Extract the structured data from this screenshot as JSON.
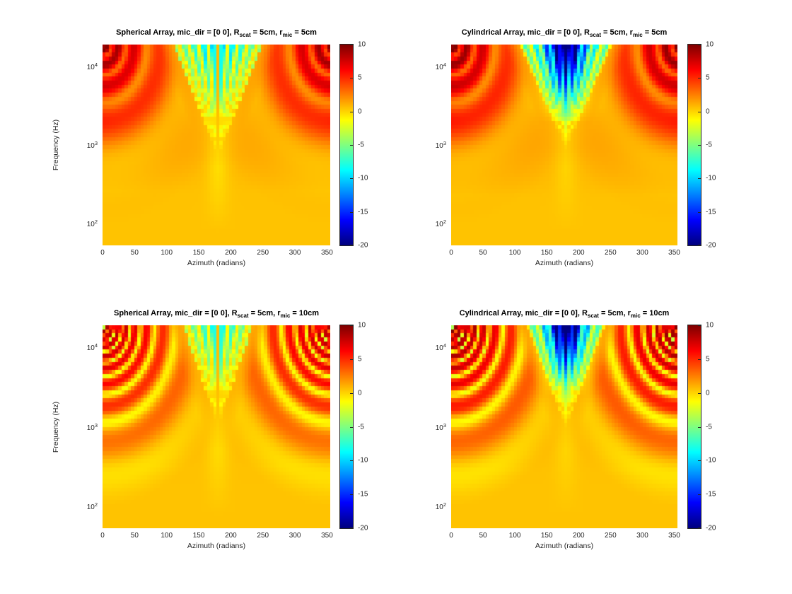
{
  "figure": {
    "background": "#ffffff"
  },
  "chart_data": {
    "type": "heatmap",
    "layout": "2x2",
    "colormap": "jet",
    "value_range": [
      -20,
      10
    ],
    "colorbar": {
      "ticks": [
        10,
        5,
        0,
        -5,
        -10,
        -15,
        -20
      ]
    },
    "x_axis": {
      "label": "Azimuth (radians)",
      "ticks": [
        0,
        50,
        100,
        150,
        200,
        250,
        300,
        350
      ],
      "range": [
        0,
        355
      ]
    },
    "y_axis": {
      "label": "Frequency (Hz)",
      "scale": "log",
      "tick_exponents": [
        4,
        3,
        2
      ],
      "log_range": [
        1.72,
        4.28
      ]
    },
    "grid": {
      "n_azimuth": 72,
      "n_freq": 50
    },
    "panels": [
      {
        "id": "spherical-r5",
        "title_parts": [
          "Spherical Array, mic_dir = [0 0], R",
          "scat",
          " = 5cm, r",
          "mic",
          " = 5cm"
        ],
        "pattern": {
          "base": 0.5,
          "baseRise": 0.9,
          "side": 6.5,
          "sideFade": 0.74,
          "sTop": 0.38,
          "tApex": 0.56,
          "rays": 9,
          "depth": 15,
          "seamMax": false,
          "ccDepth": 0,
          "ccW": 0.15,
          "ccT": 0.38,
          "dip": 0.9,
          "fringeCount": 4.2,
          "fringeAmp": 0.34
        }
      },
      {
        "id": "cylindrical-r5",
        "title_parts": [
          "Cylindrical Array, mic_dir = [0 0], R",
          "scat",
          " = 5cm, r",
          "mic",
          " = 5cm"
        ],
        "pattern": {
          "base": 0.5,
          "baseRise": 0.9,
          "side": 6.8,
          "sideFade": 0.76,
          "sTop": 0.4,
          "tApex": 0.52,
          "rays": 9,
          "depth": 17,
          "seamMax": true,
          "ccDepth": 14,
          "ccW": 0.16,
          "ccT": 0.38,
          "dip": 0.6,
          "fringeCount": 4.2,
          "fringeAmp": 0.36
        }
      },
      {
        "id": "spherical-r10",
        "title_parts": [
          "Spherical Array, mic_dir = [0 0], R",
          "scat",
          " = 5cm, r",
          "mic",
          " = 10cm"
        ],
        "pattern": {
          "base": 0.5,
          "baseRise": 0.7,
          "side": 4.2,
          "sideFade": 0.7,
          "sTop": 0.3,
          "tApex": 0.5,
          "rays": 7,
          "depth": 13,
          "seamMax": false,
          "ccDepth": 0,
          "ccW": 0.15,
          "ccT": 0.38,
          "dip": 0.8,
          "fringeCount": 8.5,
          "fringeAmp": 0.62
        }
      },
      {
        "id": "cylindrical-r10",
        "title_parts": [
          "Cylindrical Array, mic_dir = [0 0], R",
          "scat",
          " = 5cm, r",
          "mic",
          " = 10cm"
        ],
        "pattern": {
          "base": 0.5,
          "baseRise": 0.7,
          "side": 5.0,
          "sideFade": 0.72,
          "sTop": 0.34,
          "tApex": 0.5,
          "rays": 7,
          "depth": 16,
          "seamMax": true,
          "ccDepth": 15,
          "ccW": 0.14,
          "ccT": 0.34,
          "dip": 0.6,
          "fringeCount": 8.5,
          "fringeAmp": 0.68
        }
      }
    ]
  }
}
